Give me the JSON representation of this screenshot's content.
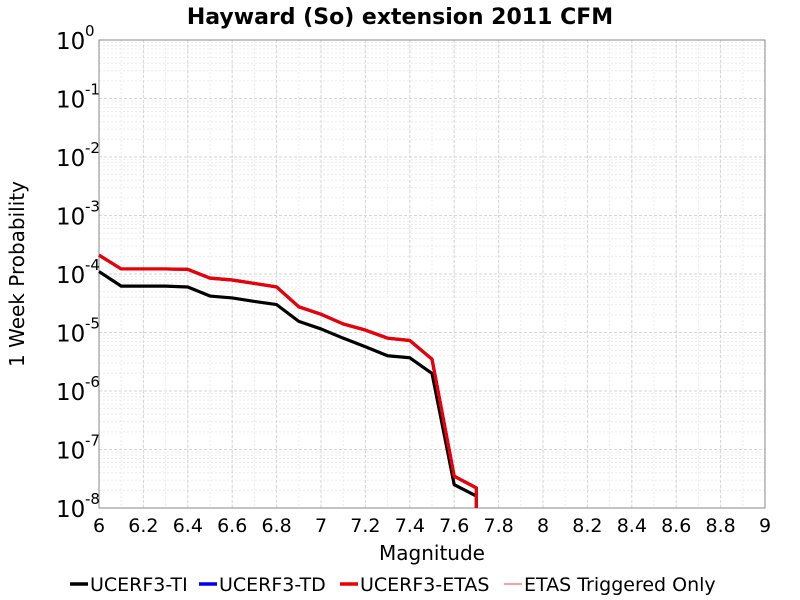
{
  "chart_data": {
    "type": "line",
    "title": "Hayward (So) extension 2011 CFM",
    "xlabel": "Magnitude",
    "ylabel": "1 Week Probability",
    "xlim": [
      6,
      9
    ],
    "ylim": [
      1e-08,
      1
    ],
    "yscale": "log",
    "grid": true,
    "legend_position": "bottom",
    "x_ticks": [
      "6",
      "6.2",
      "6.4",
      "6.6",
      "6.8",
      "7",
      "7.2",
      "7.4",
      "7.6",
      "7.8",
      "8",
      "8.2",
      "8.4",
      "8.6",
      "8.8",
      "9"
    ],
    "y_tick_bases": [
      "10",
      "10",
      "10",
      "10",
      "10",
      "10",
      "10",
      "10",
      "10"
    ],
    "y_tick_exponents": [
      "0",
      "-1",
      "-2",
      "-3",
      "-4",
      "-5",
      "-6",
      "-7",
      "-8"
    ],
    "series": [
      {
        "name": "UCERF3-TI",
        "color": "#000000",
        "x": [
          6.0,
          6.1,
          6.2,
          6.3,
          6.4,
          6.5,
          6.6,
          6.7,
          6.8,
          6.9,
          7.0,
          7.1,
          7.2,
          7.3,
          7.4,
          7.5,
          7.6,
          7.7,
          7.7
        ],
        "y": [
          0.00011,
          6.2e-05,
          6.2e-05,
          6.2e-05,
          6e-05,
          4.2e-05,
          3.9e-05,
          3.4e-05,
          3e-05,
          1.55e-05,
          1.15e-05,
          8e-06,
          5.7e-06,
          4e-06,
          3.7e-06,
          2e-06,
          2.5e-08,
          1.6e-08,
          1e-08
        ]
      },
      {
        "name": "UCERF3-TD",
        "color": "#0000ee",
        "x": [
          6.0,
          6.1,
          6.2,
          6.3,
          6.4,
          6.5,
          6.6,
          6.7,
          6.8,
          6.9,
          7.0,
          7.1,
          7.2,
          7.3,
          7.4,
          7.5,
          7.6,
          7.7,
          7.7
        ],
        "y": [
          0.00021,
          0.000122,
          0.000122,
          0.000122,
          0.00012,
          8.5e-05,
          7.9e-05,
          6.9e-05,
          6e-05,
          2.75e-05,
          2.05e-05,
          1.4e-05,
          1.1e-05,
          8e-06,
          7.3e-06,
          3.5e-06,
          3.5e-08,
          2.2e-08,
          1e-08
        ]
      },
      {
        "name": "UCERF3-ETAS",
        "color": "#ee0000",
        "x": [
          6.0,
          6.1,
          6.2,
          6.3,
          6.4,
          6.5,
          6.6,
          6.7,
          6.8,
          6.9,
          7.0,
          7.1,
          7.2,
          7.3,
          7.4,
          7.5,
          7.6,
          7.7,
          7.7
        ],
        "y": [
          0.00021,
          0.000122,
          0.000122,
          0.000122,
          0.00012,
          8.5e-05,
          7.9e-05,
          6.9e-05,
          6e-05,
          2.75e-05,
          2.05e-05,
          1.4e-05,
          1.1e-05,
          8e-06,
          7.3e-06,
          3.5e-06,
          3.5e-08,
          2.2e-08,
          1e-08
        ]
      },
      {
        "name": "ETAS Triggered Only",
        "color": "#ee6a6a",
        "x": [],
        "y": []
      }
    ]
  }
}
